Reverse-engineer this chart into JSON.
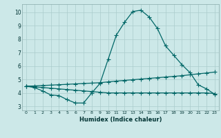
{
  "xlabel": "Humidex (Indice chaleur)",
  "ylabel": "",
  "bg_color": "#cce8e8",
  "line_color": "#006666",
  "grid_color": "#aacccc",
  "xlim": [
    -0.5,
    23.5
  ],
  "ylim": [
    2.7,
    10.6
  ],
  "xticks": [
    0,
    1,
    2,
    3,
    4,
    5,
    6,
    7,
    8,
    9,
    10,
    11,
    12,
    13,
    14,
    15,
    16,
    17,
    18,
    19,
    20,
    21,
    22,
    23
  ],
  "yticks": [
    3,
    4,
    5,
    6,
    7,
    8,
    9,
    10
  ],
  "line1_x": [
    0,
    1,
    2,
    3,
    4,
    5,
    6,
    7,
    8,
    9,
    10,
    11,
    12,
    13,
    14,
    15,
    16,
    17,
    18,
    19,
    20,
    21,
    22,
    23
  ],
  "line1_y": [
    4.5,
    4.4,
    4.15,
    3.85,
    3.8,
    3.5,
    3.25,
    3.25,
    4.0,
    4.7,
    6.5,
    8.3,
    9.25,
    10.05,
    10.15,
    9.65,
    8.8,
    7.5,
    6.8,
    6.1,
    5.5,
    4.6,
    4.3,
    3.9
  ],
  "line2_x": [
    0,
    1,
    2,
    3,
    4,
    5,
    6,
    7,
    8,
    9,
    10,
    11,
    12,
    13,
    14,
    15,
    16,
    17,
    18,
    19,
    20,
    21,
    22,
    23
  ],
  "line2_y": [
    4.5,
    4.52,
    4.55,
    4.58,
    4.61,
    4.64,
    4.67,
    4.7,
    4.73,
    4.76,
    4.82,
    4.88,
    4.93,
    4.98,
    5.03,
    5.08,
    5.13,
    5.18,
    5.23,
    5.28,
    5.35,
    5.42,
    5.48,
    5.55
  ],
  "line3_x": [
    0,
    1,
    2,
    3,
    4,
    5,
    6,
    7,
    8,
    9,
    10,
    11,
    12,
    13,
    14,
    15,
    16,
    17,
    18,
    19,
    20,
    21,
    22,
    23
  ],
  "line3_y": [
    4.5,
    4.45,
    4.4,
    4.35,
    4.3,
    4.25,
    4.2,
    4.15,
    4.1,
    4.05,
    4.0,
    4.0,
    4.0,
    4.0,
    4.0,
    4.0,
    4.0,
    4.0,
    4.0,
    4.0,
    4.0,
    4.0,
    4.0,
    3.95
  ]
}
